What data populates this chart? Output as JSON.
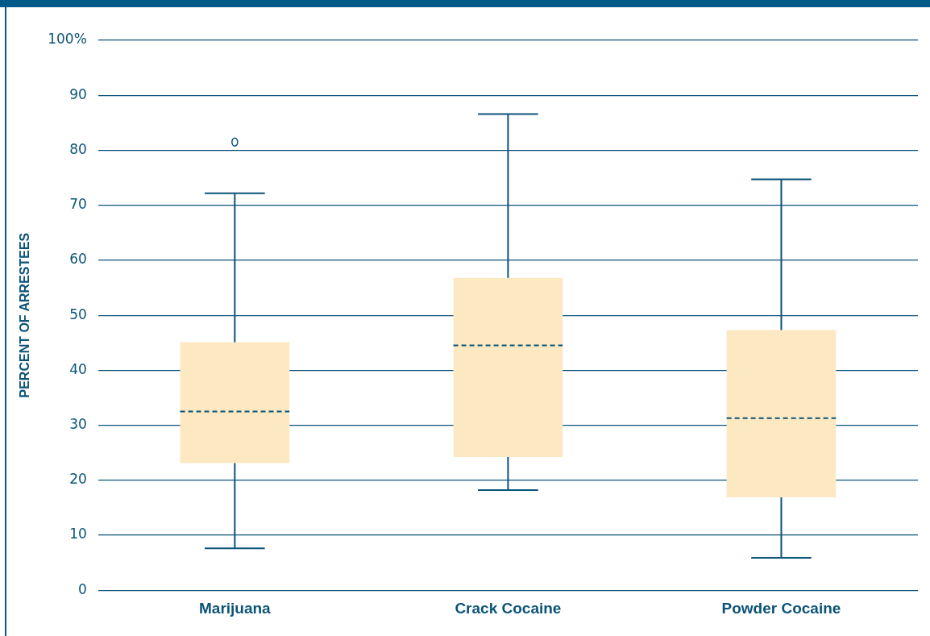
{
  "chart_data": {
    "type": "box",
    "ylabel": "PERCENT OF ARRESTEES",
    "categories": [
      "Marijuana",
      "Crack Cocaine",
      "Powder Cocaine"
    ],
    "boxes": [
      {
        "low": 7.6,
        "q1": 23.1,
        "median": 32.5,
        "q3": 45.1,
        "high": 72.2,
        "outliers": [
          81.5
        ]
      },
      {
        "low": 18.2,
        "q1": 24.2,
        "median": 44.5,
        "q3": 56.8,
        "high": 86.6
      },
      {
        "low": 5.9,
        "q1": 16.9,
        "median": 31.3,
        "q3": 47.3,
        "high": 74.7
      }
    ],
    "color": "#fde9c1",
    "ylim": [
      0,
      100
    ],
    "yticks": [
      0,
      10,
      20,
      30,
      40,
      50,
      60,
      70,
      80,
      90,
      {
        "value": 100,
        "label": "100%"
      }
    ],
    "grid": "y",
    "legend": false
  }
}
